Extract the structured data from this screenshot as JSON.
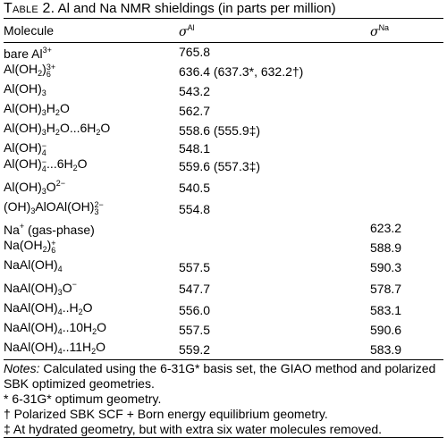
{
  "caption": {
    "label": "Table 2.",
    "text": "Al and Na NMR shieldings (in parts per million)"
  },
  "headers": {
    "molecule": "Molecule",
    "sigma": "σ",
    "al": "Al",
    "na": "Na"
  },
  "rows": [
    {
      "molecule": "bare Al3+",
      "al": "765.8",
      "na": ""
    },
    {
      "molecule": "Al(OH2)6 3+",
      "al": "636.4 (637.3*,  632.2†)",
      "na": ""
    },
    {
      "molecule": "Al(OH)3",
      "al": "543.2",
      "na": ""
    },
    {
      "molecule": "Al(OH)3H2O",
      "al": "562.7",
      "na": ""
    },
    {
      "molecule": "Al(OH)3H2O...6H2O",
      "al": "558.6 (555.9‡)",
      "na": ""
    },
    {
      "molecule": "Al(OH)4 −",
      "al": "548.1",
      "na": ""
    },
    {
      "molecule": "Al(OH)4 −...6H2O",
      "al": "559.6 (557.3‡)",
      "na": ""
    },
    {
      "molecule": "Al(OH)3O2−",
      "al": "540.5",
      "na": ""
    },
    {
      "molecule": "(OH)3AlOAl(OH)3 2−",
      "al": "554.8",
      "na": ""
    },
    {
      "molecule": "Na+ (gas-phase)",
      "al": "",
      "na": "623.2"
    },
    {
      "molecule": "Na(OH2)6 +",
      "al": "",
      "na": "588.9"
    },
    {
      "molecule": "NaAl(OH)4",
      "al": "557.5",
      "na": "590.3"
    },
    {
      "molecule": "NaAl(OH)3O−",
      "al": "547.7",
      "na": "578.7"
    },
    {
      "molecule": "NaAl(OH)4..H2O",
      "al": "556.0",
      "na": "583.1"
    },
    {
      "molecule": "NaAl(OH)4..10H2O",
      "al": "557.5",
      "na": "590.6"
    },
    {
      "molecule": "NaAl(OH)4..11H2O",
      "al": "559.2",
      "na": "583.9"
    }
  ],
  "notes": {
    "label": "Notes:",
    "text": "Calculated using the 6-31G* basis set, the GIAO method and polarized SBK optimized geometries.",
    "footnotes": [
      "* 6-31G* optimum geometry.",
      "† Polarized SBK SCF + Born energy equilibrium geometry.",
      "‡ At hydrated geometry, but with extra six water molecules removed."
    ]
  }
}
